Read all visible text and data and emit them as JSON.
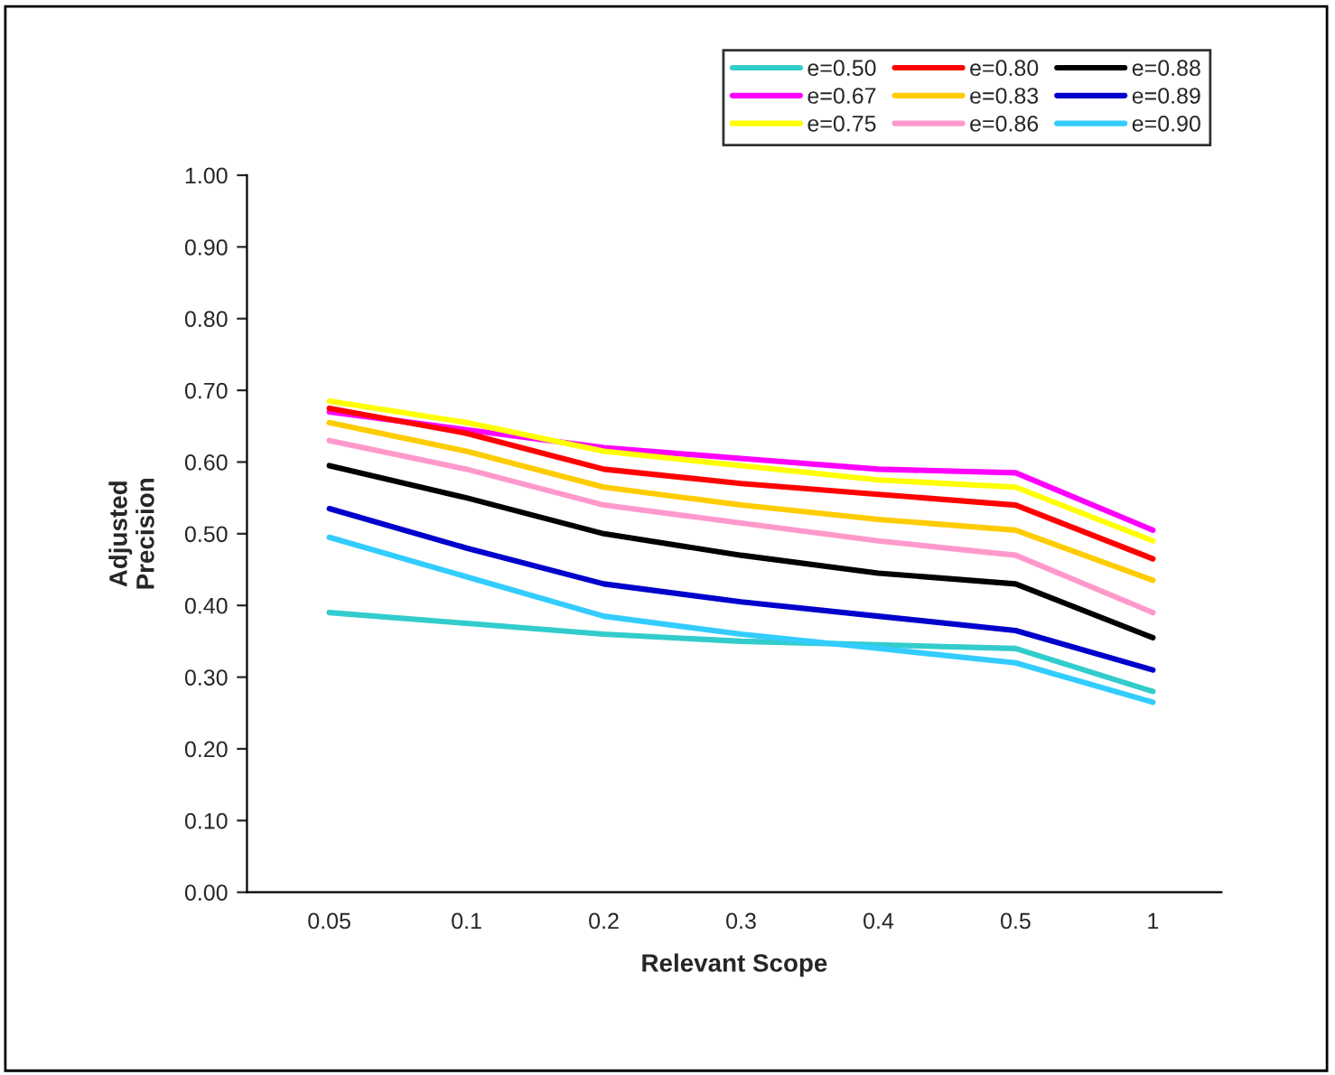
{
  "chart_data": {
    "type": "line",
    "xlabel": "Relevant Scope",
    "ylabel": "Adjusted\nPrecision",
    "categories": [
      "0.05",
      "0.1",
      "0.2",
      "0.3",
      "0.4",
      "0.5",
      "1"
    ],
    "series": [
      {
        "name": "e=0.50",
        "color": "#33cccc",
        "values": [
          0.39,
          0.375,
          0.36,
          0.35,
          0.345,
          0.34,
          0.28
        ]
      },
      {
        "name": "e=0.67",
        "color": "#ff00ff",
        "values": [
          0.67,
          0.645,
          0.62,
          0.605,
          0.59,
          0.585,
          0.505
        ]
      },
      {
        "name": "e=0.75",
        "color": "#ffff00",
        "values": [
          0.685,
          0.655,
          0.615,
          0.595,
          0.575,
          0.565,
          0.49
        ]
      },
      {
        "name": "e=0.80",
        "color": "#ff0000",
        "values": [
          0.675,
          0.64,
          0.59,
          0.57,
          0.555,
          0.54,
          0.465
        ]
      },
      {
        "name": "e=0.83",
        "color": "#ffcc00",
        "values": [
          0.655,
          0.615,
          0.565,
          0.54,
          0.52,
          0.505,
          0.435
        ]
      },
      {
        "name": "e=0.86",
        "color": "#ff99cc",
        "values": [
          0.63,
          0.59,
          0.54,
          0.515,
          0.49,
          0.47,
          0.39
        ]
      },
      {
        "name": "e=0.88",
        "color": "#000000",
        "values": [
          0.595,
          0.55,
          0.5,
          0.47,
          0.445,
          0.43,
          0.355
        ]
      },
      {
        "name": "e=0.89",
        "color": "#0000cc",
        "values": [
          0.535,
          0.48,
          0.43,
          0.405,
          0.385,
          0.365,
          0.31
        ]
      },
      {
        "name": "e=0.90",
        "color": "#33ccff",
        "values": [
          0.495,
          0.44,
          0.385,
          0.36,
          0.34,
          0.32,
          0.265
        ]
      }
    ],
    "ylim": [
      0,
      1
    ],
    "yticks": [
      {
        "value": 0,
        "label": "0.00"
      },
      {
        "value": 0.1,
        "label": "0.10"
      },
      {
        "value": 0.2,
        "label": "0.20"
      },
      {
        "value": 0.3,
        "label": "0.30"
      },
      {
        "value": 0.4,
        "label": "0.40"
      },
      {
        "value": 0.5,
        "label": "0.50"
      },
      {
        "value": 0.6,
        "label": "0.60"
      },
      {
        "value": 0.7,
        "label": "0.70"
      },
      {
        "value": 0.8,
        "label": "0.80"
      },
      {
        "value": 0.9,
        "label": "0.90"
      },
      {
        "value": 1,
        "label": "1.00"
      }
    ],
    "legend": "top right",
    "marker": "none",
    "line_style": "solid"
  }
}
